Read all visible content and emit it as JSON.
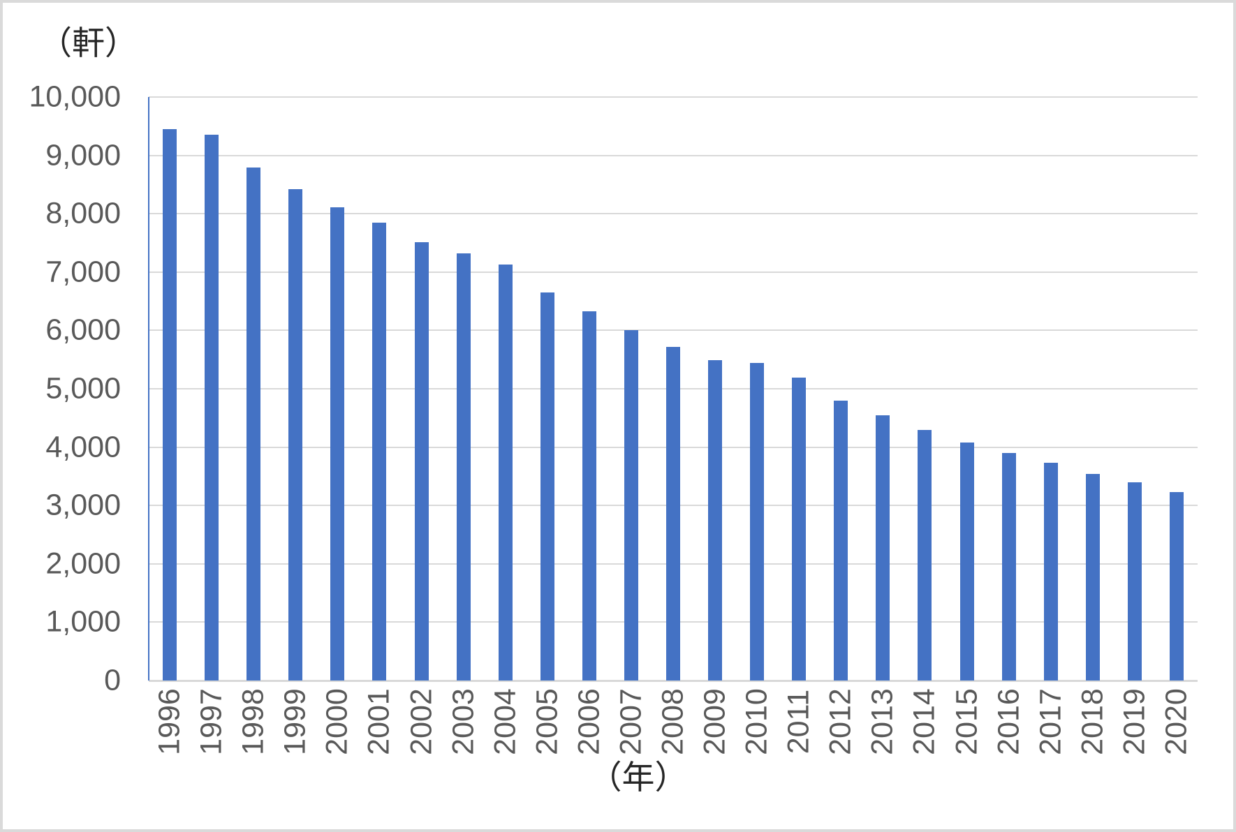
{
  "chart": {
    "y_unit_label": "（軒）",
    "x_unit_label": "（年）",
    "colors": {
      "bar": "#4472C4",
      "gridline": "#D9D9D9",
      "x_axis_line": "#D9D9D9",
      "y_axis_line": "#4472C4",
      "tick_text": "#595959",
      "unit_text": "#262626",
      "frame_border": "#DADADA",
      "background": "#FFFFFF"
    }
  },
  "chart_data": {
    "type": "bar",
    "title": "",
    "xlabel": "（年）",
    "ylabel": "（軒）",
    "categories": [
      "1996",
      "1997",
      "1998",
      "1999",
      "2000",
      "2001",
      "2002",
      "2003",
      "2004",
      "2005",
      "2006",
      "2007",
      "2008",
      "2009",
      "2010",
      "2011",
      "2012",
      "2013",
      "2014",
      "2015",
      "2016",
      "2017",
      "2018",
      "2019",
      "2020"
    ],
    "values": [
      9450,
      9360,
      8790,
      8420,
      8110,
      7850,
      7510,
      7320,
      7130,
      6650,
      6330,
      6010,
      5720,
      5490,
      5440,
      5190,
      4800,
      4550,
      4300,
      4080,
      3900,
      3730,
      3540,
      3400,
      3230
    ],
    "ylim": [
      0,
      10000
    ],
    "y_tick_interval": 1000,
    "y_tick_labels": [
      "0",
      "1,000",
      "2,000",
      "3,000",
      "4,000",
      "5,000",
      "6,000",
      "7,000",
      "8,000",
      "9,000",
      "10,000"
    ],
    "grid": "horizontal",
    "legend": "none",
    "x_tick_rotation": -90
  }
}
